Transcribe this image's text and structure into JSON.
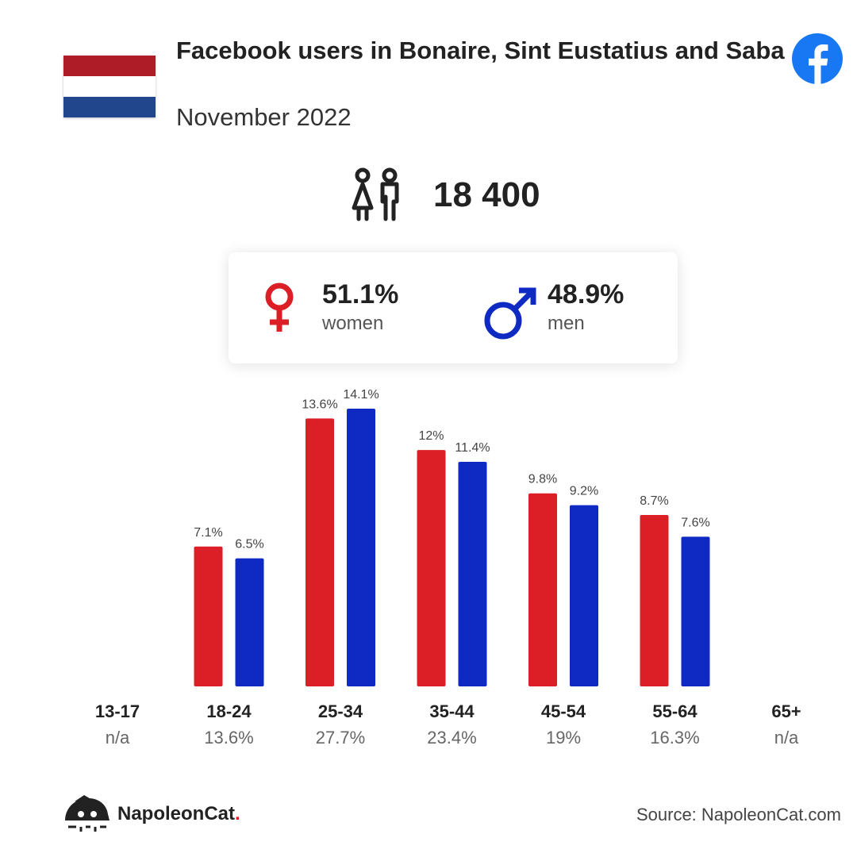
{
  "header": {
    "title": "Facebook users in Bonaire, Sint Eustatius and Saba",
    "subtitle": "November 2022",
    "flag_colors": [
      "#ae1c28",
      "#ffffff",
      "#21468b"
    ],
    "platform_icon": "facebook-icon",
    "platform_color": "#1877f2"
  },
  "total": {
    "icon": "people-icon",
    "value": "18 400"
  },
  "gender": {
    "women": {
      "icon": "female-symbol-icon",
      "percent": "51.1%",
      "label": "women",
      "color": "#dc1f26"
    },
    "men": {
      "icon": "male-symbol-icon",
      "percent": "48.9%",
      "label": "men",
      "color": "#0f2ac2"
    }
  },
  "chart_data": {
    "type": "bar",
    "categories": [
      "13-17",
      "18-24",
      "25-34",
      "35-44",
      "45-54",
      "55-64",
      "65+"
    ],
    "category_totals": [
      "n/a",
      "13.6%",
      "27.7%",
      "23.4%",
      "19%",
      "16.3%",
      "n/a"
    ],
    "series": [
      {
        "key": "women",
        "color": "#dc1f26",
        "values": [
          null,
          7.1,
          13.6,
          12,
          9.8,
          8.7,
          null
        ],
        "labels": [
          "",
          "7.1%",
          "13.6%",
          "12%",
          "9.8%",
          "8.7%",
          ""
        ]
      },
      {
        "key": "men",
        "color": "#0f2ac2",
        "values": [
          null,
          6.5,
          14.1,
          11.4,
          9.2,
          7.6,
          null
        ],
        "labels": [
          "",
          "6.5%",
          "14.1%",
          "11.4%",
          "9.2%",
          "7.6%",
          ""
        ]
      }
    ],
    "ylim": [
      0,
      14.1
    ],
    "grid": false,
    "legend": "none"
  },
  "footer": {
    "brand_icon": "napoleoncat-logo-icon",
    "brand_name": "NapoleonCat",
    "brand_dot": ".",
    "source": "Source: NapoleonCat.com"
  }
}
